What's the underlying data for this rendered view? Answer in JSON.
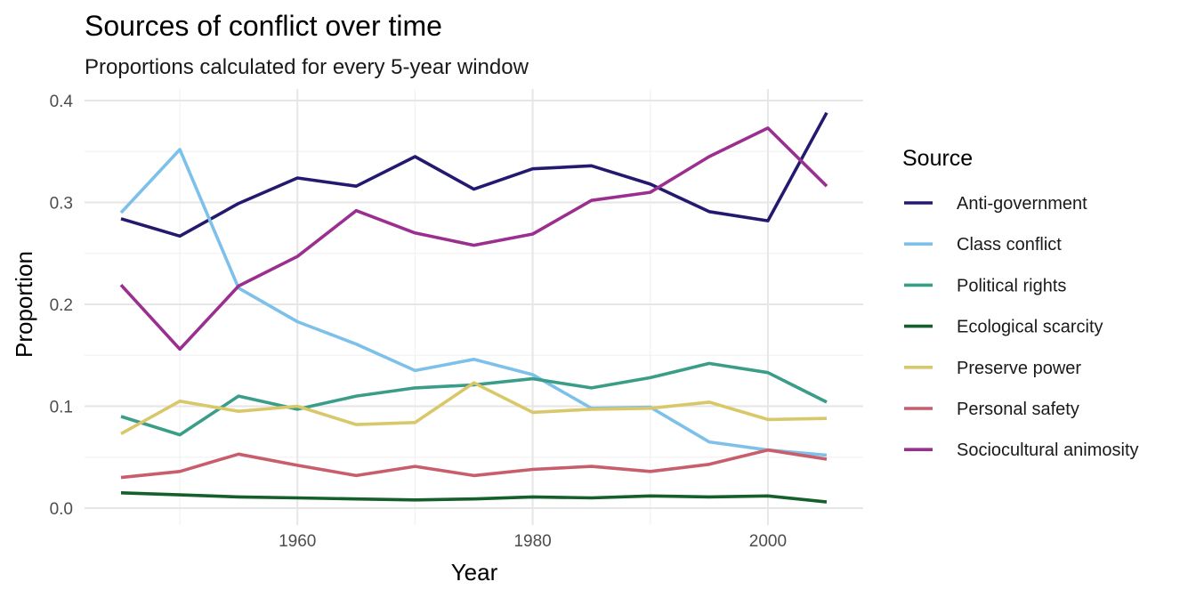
{
  "chart_data": {
    "type": "line",
    "title": "Sources of conflict over time",
    "subtitle": "Proportions calculated for every 5-year window",
    "xlabel": "Year",
    "ylabel": "Proportion",
    "x": [
      1945,
      1950,
      1955,
      1960,
      1965,
      1970,
      1975,
      1980,
      1985,
      1990,
      1995,
      2000,
      2005
    ],
    "xlim": [
      1941.9,
      2008.1
    ],
    "ylim": [
      0,
      0.4
    ],
    "xticks": [
      1960,
      1980,
      2000
    ],
    "yticks": [
      0.0,
      0.1,
      0.2,
      0.3,
      0.4
    ],
    "ytick_labels": [
      "0.0",
      "0.1",
      "0.2",
      "0.3",
      "0.4"
    ],
    "grid": true,
    "legend_title": "Source",
    "legend_position": "right",
    "series": [
      {
        "name": "Anti-government",
        "color": "#231a70",
        "values": [
          0.284,
          0.267,
          0.299,
          0.324,
          0.316,
          0.345,
          0.313,
          0.333,
          0.336,
          0.318,
          0.291,
          0.282,
          0.388
        ]
      },
      {
        "name": "Class conflict",
        "color": "#7dc1ea",
        "values": [
          0.29,
          0.352,
          0.216,
          0.183,
          0.161,
          0.135,
          0.146,
          0.131,
          0.098,
          0.099,
          0.065,
          0.057,
          0.052
        ]
      },
      {
        "name": "Political rights",
        "color": "#3a9d87",
        "values": [
          0.09,
          0.072,
          0.11,
          0.097,
          0.11,
          0.118,
          0.121,
          0.127,
          0.118,
          0.128,
          0.142,
          0.133,
          0.104
        ]
      },
      {
        "name": "Ecological scarcity",
        "color": "#155f2b",
        "values": [
          0.015,
          0.013,
          0.011,
          0.01,
          0.009,
          0.008,
          0.009,
          0.011,
          0.01,
          0.012,
          0.011,
          0.012,
          0.006
        ]
      },
      {
        "name": "Preserve power",
        "color": "#d9c86a",
        "values": [
          0.073,
          0.105,
          0.095,
          0.1,
          0.082,
          0.084,
          0.123,
          0.094,
          0.097,
          0.098,
          0.104,
          0.087,
          0.088
        ]
      },
      {
        "name": "Personal safety",
        "color": "#c85d6c",
        "values": [
          0.03,
          0.036,
          0.053,
          0.042,
          0.032,
          0.041,
          0.032,
          0.038,
          0.041,
          0.036,
          0.043,
          0.057,
          0.048
        ]
      },
      {
        "name": "Sociocultural animosity",
        "color": "#9b2f90",
        "values": [
          0.219,
          0.156,
          0.218,
          0.247,
          0.292,
          0.27,
          0.258,
          0.269,
          0.302,
          0.31,
          0.345,
          0.373,
          0.316
        ]
      }
    ]
  }
}
